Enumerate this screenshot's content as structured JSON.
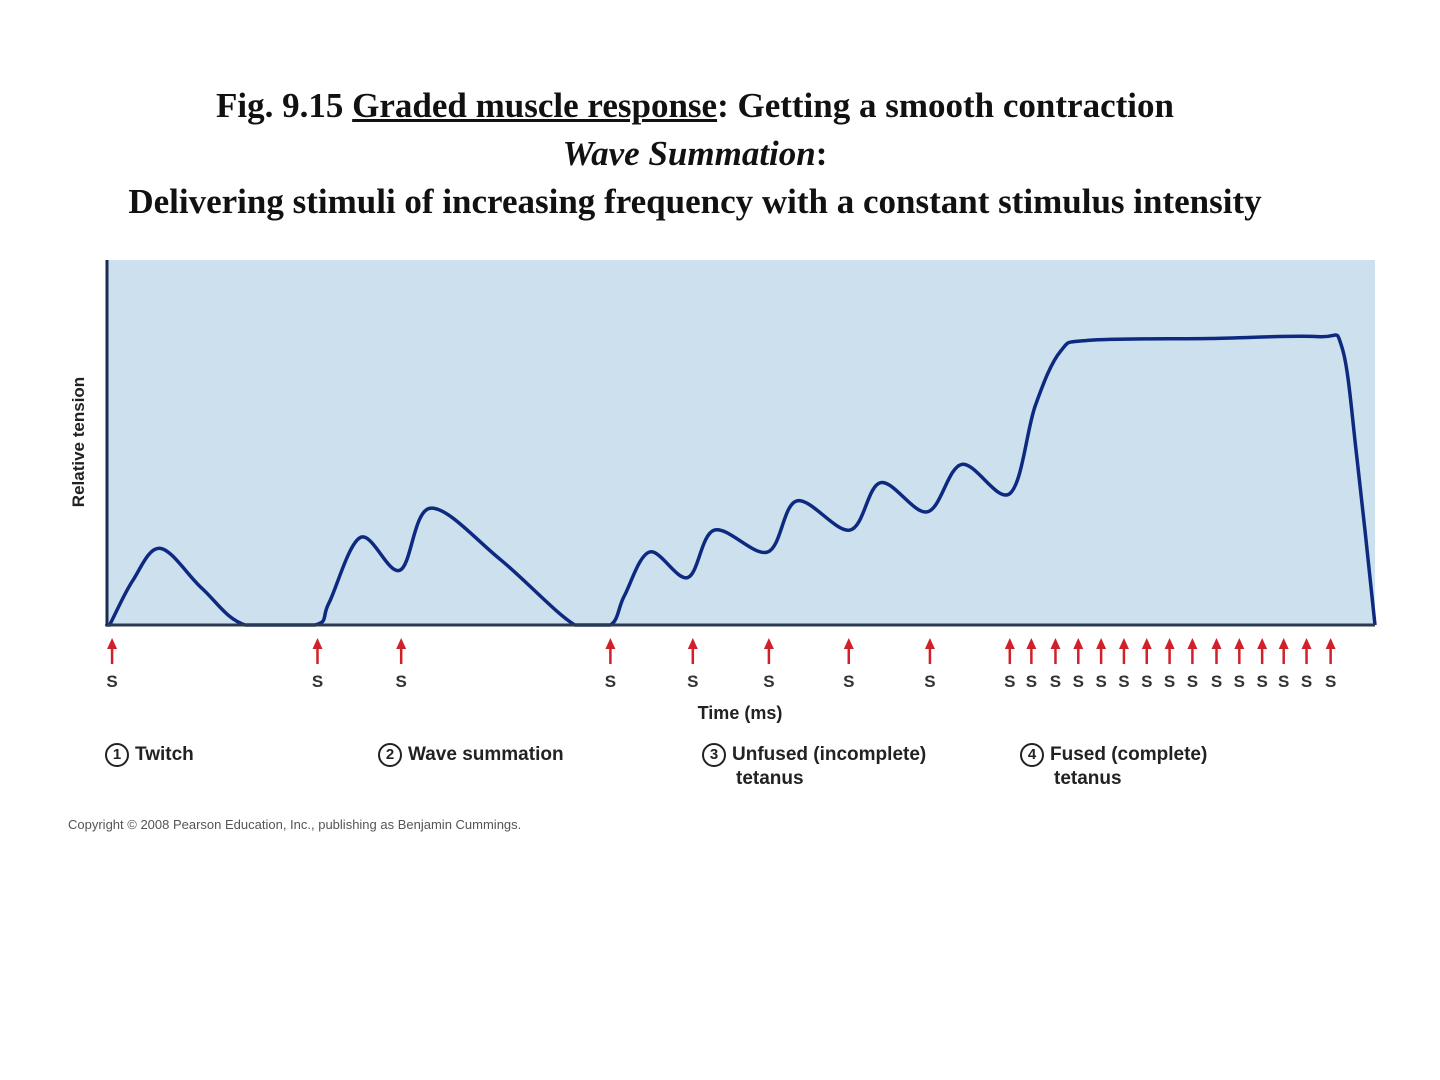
{
  "title": {
    "prefix": "Fig. 9.15 ",
    "underlined": "Graded muscle response",
    "suffix": ": Getting a smooth contraction",
    "line2_italic": "Wave Summation",
    "line2_suffix": ":",
    "line3": "Delivering stimuli of increasing frequency with a constant stimulus intensity"
  },
  "chart_data": {
    "type": "line",
    "xlabel": "Time (ms)",
    "ylabel": "Relative tension",
    "xlim": [
      0,
      100
    ],
    "ylim": [
      0,
      1
    ],
    "grid": false,
    "background_color": "#cde0ee",
    "line_color": "#0d2a80",
    "stimulus_color": "#d0202a",
    "stimulus_label": "S",
    "curve": {
      "x": [
        0,
        0.2,
        2.0,
        4.2,
        7.5,
        10.9,
        16.4,
        17.5,
        20.0,
        23.1,
        25.5,
        31,
        36.9,
        39.7,
        40.8,
        42.8,
        45.8,
        47.9,
        52.1,
        54.4,
        58.6,
        61.0,
        64.7,
        67.4,
        71.2,
        73.2,
        75.2,
        77.5,
        87,
        95.5,
        97.4,
        98.6,
        100
      ],
      "y": [
        0,
        0,
        0.12,
        0.21,
        0.1,
        0,
        0,
        0.06,
        0.24,
        0.15,
        0.32,
        0.18,
        0,
        0,
        0.08,
        0.2,
        0.13,
        0.26,
        0.2,
        0.34,
        0.26,
        0.39,
        0.31,
        0.44,
        0.36,
        0.6,
        0.75,
        0.78,
        0.785,
        0.79,
        0.76,
        0.45,
        0
      ]
    },
    "stimuli_x": [
      0.4,
      16.6,
      23.2,
      39.7,
      46.2,
      52.2,
      58.5,
      64.9,
      71.2,
      72.9,
      74.8,
      76.6,
      78.4,
      80.2,
      82.0,
      83.8,
      85.6,
      87.5,
      89.3,
      91.1,
      92.8,
      94.6,
      96.5
    ],
    "phases": [
      {
        "number": "1",
        "label": "Twitch",
        "label2": ""
      },
      {
        "number": "2",
        "label": "Wave summation",
        "label2": ""
      },
      {
        "number": "3",
        "label": "Unfused (incomplete)",
        "label2": "tetanus"
      },
      {
        "number": "4",
        "label": "Fused (complete)",
        "label2": "tetanus"
      }
    ]
  },
  "copyright": "Copyright © 2008 Pearson Education, Inc., publishing as Benjamin Cummings."
}
